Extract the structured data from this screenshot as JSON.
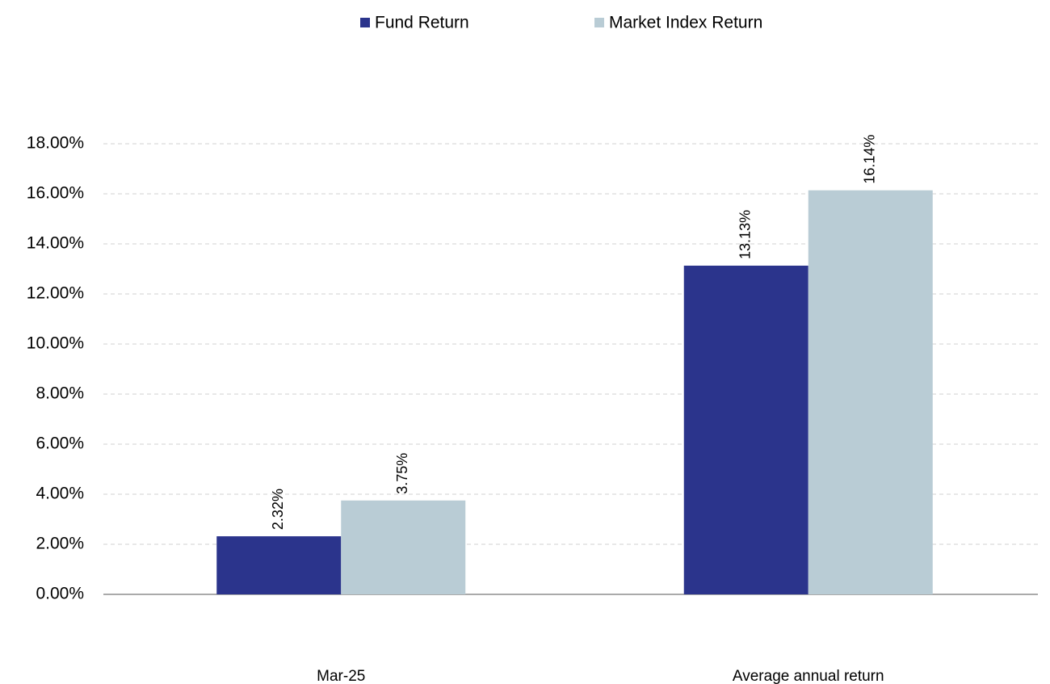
{
  "chart_data": {
    "type": "bar",
    "categories": [
      "Mar-25",
      "Average annual return"
    ],
    "series": [
      {
        "name": "Fund Return",
        "color": "#2b348c",
        "values": [
          2.32,
          13.13
        ],
        "value_labels": [
          "2.32%",
          "13.13%"
        ]
      },
      {
        "name": "Market Index Return",
        "color": "#b9ccd5",
        "values": [
          3.75,
          16.14
        ],
        "value_labels": [
          "3.75%",
          "16.14%"
        ]
      }
    ],
    "ylim": [
      0,
      18
    ],
    "yticks": [
      {
        "value": 0,
        "label": "0.00%"
      },
      {
        "value": 2,
        "label": "2.00%"
      },
      {
        "value": 4,
        "label": "4.00%"
      },
      {
        "value": 6,
        "label": "6.00%"
      },
      {
        "value": 8,
        "label": "8.00%"
      },
      {
        "value": 10,
        "label": "10.00%"
      },
      {
        "value": 12,
        "label": "12.00%"
      },
      {
        "value": 14,
        "label": "14.00%"
      },
      {
        "value": 16,
        "label": "16.00%"
      },
      {
        "value": 18,
        "label": "18.00%"
      }
    ],
    "grid": true,
    "legend": "top"
  }
}
